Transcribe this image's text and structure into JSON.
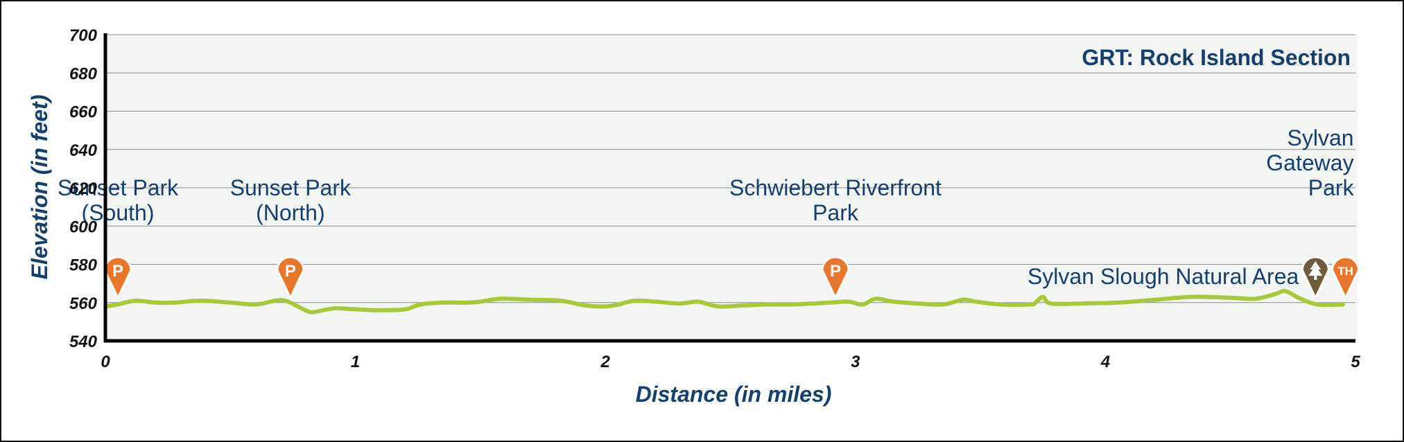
{
  "chart_data": {
    "type": "line",
    "title": "GRT: Rock Island Section",
    "xlabel": "Distance (in miles)",
    "ylabel": "Elevation (in feet)",
    "xlim": [
      0,
      5
    ],
    "ylim": [
      540,
      700
    ],
    "x_ticks": [
      "0",
      "1",
      "2",
      "3",
      "4",
      "5"
    ],
    "y_ticks": [
      "540",
      "560",
      "580",
      "600",
      "620",
      "640",
      "660",
      "680",
      "700"
    ],
    "grid": true,
    "series": [
      {
        "color": "#a6c93a",
        "points": [
          [
            0.0,
            558
          ],
          [
            0.05,
            559
          ],
          [
            0.12,
            561
          ],
          [
            0.2,
            560
          ],
          [
            0.28,
            560
          ],
          [
            0.38,
            561
          ],
          [
            0.5,
            560
          ],
          [
            0.6,
            559
          ],
          [
            0.68,
            561
          ],
          [
            0.72,
            561
          ],
          [
            0.77,
            558
          ],
          [
            0.82,
            555
          ],
          [
            0.87,
            556
          ],
          [
            0.92,
            557
          ],
          [
            1.0,
            556.5
          ],
          [
            1.1,
            556
          ],
          [
            1.2,
            556.5
          ],
          [
            1.26,
            559
          ],
          [
            1.35,
            560
          ],
          [
            1.45,
            560
          ],
          [
            1.5,
            560.5
          ],
          [
            1.58,
            562
          ],
          [
            1.7,
            561.5
          ],
          [
            1.82,
            561
          ],
          [
            1.92,
            558.5
          ],
          [
            2.0,
            558
          ],
          [
            2.05,
            559
          ],
          [
            2.12,
            561
          ],
          [
            2.2,
            560.5
          ],
          [
            2.3,
            559.5
          ],
          [
            2.37,
            560.5
          ],
          [
            2.45,
            558
          ],
          [
            2.55,
            558.5
          ],
          [
            2.65,
            559
          ],
          [
            2.75,
            559
          ],
          [
            2.9,
            560
          ],
          [
            2.97,
            560.5
          ],
          [
            3.03,
            559
          ],
          [
            3.08,
            562
          ],
          [
            3.15,
            560.5
          ],
          [
            3.25,
            559.5
          ],
          [
            3.35,
            559
          ],
          [
            3.43,
            561.5
          ],
          [
            3.48,
            560.5
          ],
          [
            3.58,
            559
          ],
          [
            3.7,
            559
          ],
          [
            3.72,
            560
          ],
          [
            3.75,
            563
          ],
          [
            3.78,
            559.5
          ],
          [
            3.9,
            559.5
          ],
          [
            4.05,
            560
          ],
          [
            4.2,
            561.5
          ],
          [
            4.35,
            563
          ],
          [
            4.5,
            562.5
          ],
          [
            4.6,
            562
          ],
          [
            4.68,
            564.5
          ],
          [
            4.72,
            566
          ],
          [
            4.78,
            562
          ],
          [
            4.85,
            559
          ],
          [
            4.95,
            559
          ]
        ]
      }
    ],
    "markers": [
      {
        "x": 0.05,
        "icon": "parking-icon",
        "letter": "P",
        "color": "#e8772e",
        "label_lines": [
          "Sunset Park",
          "(South)"
        ]
      },
      {
        "x": 0.74,
        "icon": "parking-icon",
        "letter": "P",
        "color": "#e8772e",
        "label_lines": [
          "Sunset Park",
          "(North)"
        ]
      },
      {
        "x": 2.92,
        "icon": "parking-icon",
        "letter": "P",
        "color": "#e8772e",
        "label_lines": [
          "Schwiebert Riverfront",
          "Park"
        ]
      },
      {
        "x": 4.84,
        "icon": "tree-icon",
        "letter": "",
        "color": "#6f5a3c",
        "label_lines": [
          "Sylvan Slough Natural Area"
        ]
      },
      {
        "x": 4.96,
        "icon": "trailhead-icon",
        "letter": "TH",
        "color": "#e8772e",
        "label_lines": [
          "Sylvan",
          "Gateway",
          "Park"
        ]
      }
    ]
  }
}
